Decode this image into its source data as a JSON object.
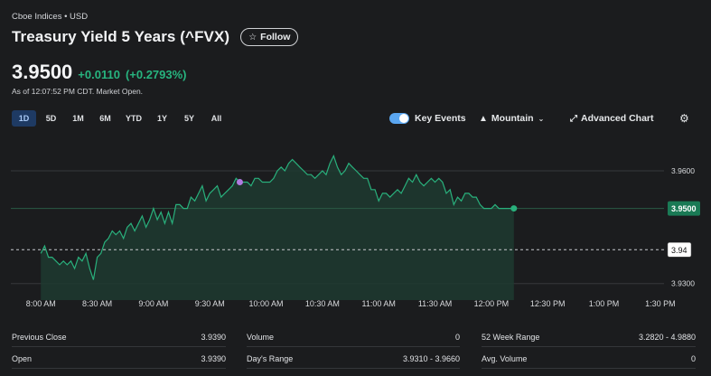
{
  "header": {
    "exchange": "Cboe Indices • USD",
    "title": "Treasury Yield 5 Years (^FVX)",
    "follow_label": "Follow",
    "price": "3.9500",
    "change": "+0.0110",
    "change_pct": "(+0.2793%)",
    "as_of": "As of 12:07:52 PM CDT. Market Open."
  },
  "ranges": [
    "1D",
    "5D",
    "1M",
    "6M",
    "YTD",
    "1Y",
    "5Y",
    "All"
  ],
  "active_range": "1D",
  "toolbar": {
    "key_events": "Key Events",
    "chart_type": "Mountain",
    "advanced_chart": "Advanced Chart"
  },
  "chart_data": {
    "type": "area",
    "y_ticks": [
      "3.9600",
      "3.9500",
      "3.9300"
    ],
    "current_value_label": "3.9500",
    "prev_close_label": "3.94",
    "prev_close": 3.939,
    "x_labels": [
      "8:00 AM",
      "8:30 AM",
      "9:00 AM",
      "9:30 AM",
      "10:00 AM",
      "10:30 AM",
      "11:00 AM",
      "11:30 AM",
      "12:00 PM",
      "12:30 PM",
      "1:00 PM",
      "1:30 PM"
    ],
    "ylim": [
      3.928,
      3.9665
    ],
    "colors": {
      "line": "#29b07c",
      "fill": "#1d3a30",
      "event": "#b07ae0",
      "grid": "#36383c"
    },
    "t_minutes": [
      0,
      2,
      4,
      6,
      8,
      10,
      12,
      14,
      16,
      18,
      20,
      22,
      24,
      26,
      28,
      30,
      32,
      34,
      36,
      38,
      40,
      42,
      44,
      46,
      48,
      50,
      52,
      54,
      56,
      58,
      60,
      62,
      64,
      66,
      68,
      70,
      72,
      74,
      76,
      78,
      80,
      82,
      84,
      86,
      88,
      90,
      92,
      94,
      96,
      98,
      100,
      102,
      104,
      106,
      108,
      110,
      112,
      114,
      116,
      118,
      120,
      122,
      124,
      126,
      128,
      130,
      132,
      134,
      136,
      138,
      140,
      142,
      144,
      146,
      148,
      150,
      152,
      154,
      156,
      158,
      160,
      162,
      164,
      166,
      168,
      170,
      172,
      174,
      176,
      178,
      180,
      182,
      184,
      186,
      188,
      190,
      192,
      194,
      196,
      198,
      200,
      202,
      204,
      206,
      208,
      210,
      212,
      214,
      216,
      218,
      220,
      222,
      224,
      226,
      228,
      230,
      232,
      234,
      236,
      238,
      240,
      242,
      244,
      246,
      248,
      250,
      252
    ],
    "values": [
      3.938,
      3.94,
      3.937,
      3.937,
      3.936,
      3.935,
      3.936,
      3.935,
      3.936,
      3.934,
      3.937,
      3.936,
      3.938,
      3.934,
      3.931,
      3.937,
      3.938,
      3.941,
      3.942,
      3.944,
      3.943,
      3.944,
      3.942,
      3.945,
      3.946,
      3.944,
      3.946,
      3.948,
      3.945,
      3.947,
      3.95,
      3.947,
      3.949,
      3.946,
      3.949,
      3.946,
      3.951,
      3.951,
      3.95,
      3.95,
      3.953,
      3.952,
      3.954,
      3.956,
      3.952,
      3.954,
      3.955,
      3.956,
      3.953,
      3.954,
      3.955,
      3.956,
      3.958,
      3.957,
      3.957,
      3.957,
      3.956,
      3.958,
      3.958,
      3.957,
      3.957,
      3.957,
      3.958,
      3.96,
      3.961,
      3.96,
      3.962,
      3.963,
      3.962,
      3.961,
      3.96,
      3.959,
      3.959,
      3.958,
      3.959,
      3.96,
      3.959,
      3.962,
      3.964,
      3.961,
      3.959,
      3.96,
      3.962,
      3.961,
      3.96,
      3.959,
      3.958,
      3.958,
      3.955,
      3.955,
      3.952,
      3.954,
      3.954,
      3.953,
      3.954,
      3.955,
      3.954,
      3.956,
      3.958,
      3.957,
      3.959,
      3.957,
      3.956,
      3.957,
      3.958,
      3.957,
      3.958,
      3.957,
      3.954,
      3.955,
      3.951,
      3.953,
      3.952,
      3.954,
      3.954,
      3.953,
      3.953,
      3.951,
      3.95,
      3.95,
      3.95,
      3.951,
      3.95,
      3.95,
      3.95,
      3.95,
      3.95
    ],
    "event_index": 53
  },
  "stats": [
    {
      "label": "Previous Close",
      "value": "3.9390"
    },
    {
      "label": "Volume",
      "value": "0"
    },
    {
      "label": "52 Week Range",
      "value": "3.2820 - 4.9880"
    },
    {
      "label": "Open",
      "value": "3.9390"
    },
    {
      "label": "Day's Range",
      "value": "3.9310 - 3.9660"
    },
    {
      "label": "Avg. Volume",
      "value": "0"
    }
  ]
}
